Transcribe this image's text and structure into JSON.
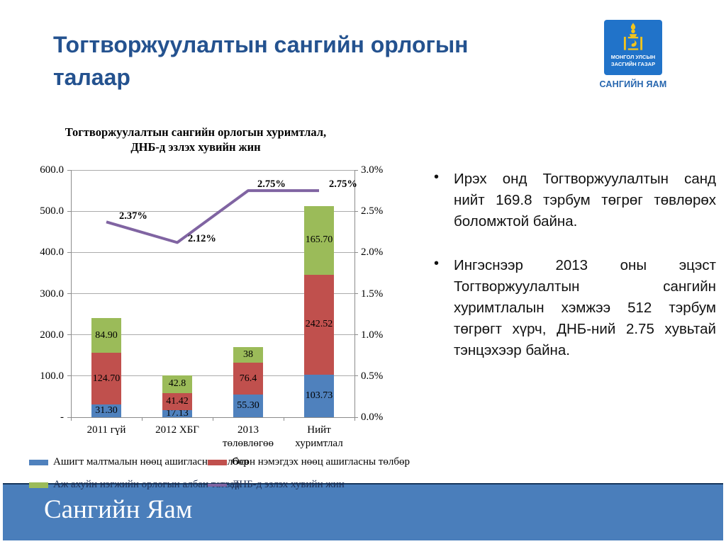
{
  "slide": {
    "title": "Тогтворжуулалтын сангийн орлогын талаар",
    "footer_title": "Сангийн Яам"
  },
  "logo": {
    "emblem_line1": "МОНГОЛ УЛСЫН",
    "emblem_line2": "ЗАСГИЙН ГАЗАР",
    "caption": "САНГИЙН ЯАМ",
    "square_color": "#2173C9",
    "emblem_color": "#F2C41D"
  },
  "bullets": [
    {
      "marker": "•",
      "text": "Ирэх онд Тогтворжуулалтын санд нийт 169.8 тэрбум төгрөг төвлөрөх боломжтой байна."
    },
    {
      "marker": "•",
      "text": "Ингэснээр 2013 оны эцэст Тогтворжуулалтын сангийн хуримтлалын хэмжээ 512 тэрбум төгрөгт хүрч, ДНБ-ний 2.75 хувьтай тэнцэхээр байна."
    }
  ],
  "chart_data": {
    "type": "combo: stacked-bar + line",
    "title": "Тогтворжуулалтын сангийн орлогын хуримтлал,\nДНБ-д эзлэх хувийн жин",
    "categories": [
      "2011 гүй",
      "2012 ХБГ",
      "2013\nтөлөвлөгөө",
      "Нийт\nхуримтлал"
    ],
    "bar_series": [
      {
        "name": "Ашигт малтмалын нөөц ашигласны төлбөр",
        "color": "#4F81BD",
        "values": [
          31.3,
          17.13,
          55.3,
          103.73
        ],
        "labels": [
          "31.30",
          "17.13",
          "55.30",
          "103.73"
        ]
      },
      {
        "name": "Өсөн нэмэгдэх нөөц ашигласны төлбөр",
        "color": "#C0504D",
        "values": [
          124.7,
          41.42,
          76.4,
          242.52
        ],
        "labels": [
          "124.70",
          "41.42",
          "76.4",
          "242.52"
        ]
      },
      {
        "name": "Аж ахуйн нэгжийн орлогын албан татвар",
        "color": "#9BBB59",
        "values": [
          84.9,
          42.8,
          38,
          165.7
        ],
        "labels": [
          "84.90",
          "42.8",
          "38",
          "165.70"
        ]
      }
    ],
    "line_series": {
      "name": "ДНБ-д эзлэх хувийн жин",
      "color": "#8064A2",
      "axis": "right",
      "values": [
        2.37,
        2.12,
        2.75,
        2.75
      ],
      "labels": [
        "2.37%",
        "2.12%",
        "2.75%",
        "2.75%"
      ]
    },
    "left_axis": {
      "min": 0,
      "max": 600,
      "ticks": [
        "600.0",
        "500.0",
        "400.0",
        "300.0",
        "200.0",
        "100.0",
        "-"
      ]
    },
    "right_axis": {
      "min": 0,
      "max": 3,
      "ticks": [
        "3.0%",
        "2.5%",
        "2.0%",
        "1.5%",
        "1.0%",
        "0.5%",
        "0.0%"
      ]
    },
    "grid": true,
    "legend_position": "bottom"
  }
}
